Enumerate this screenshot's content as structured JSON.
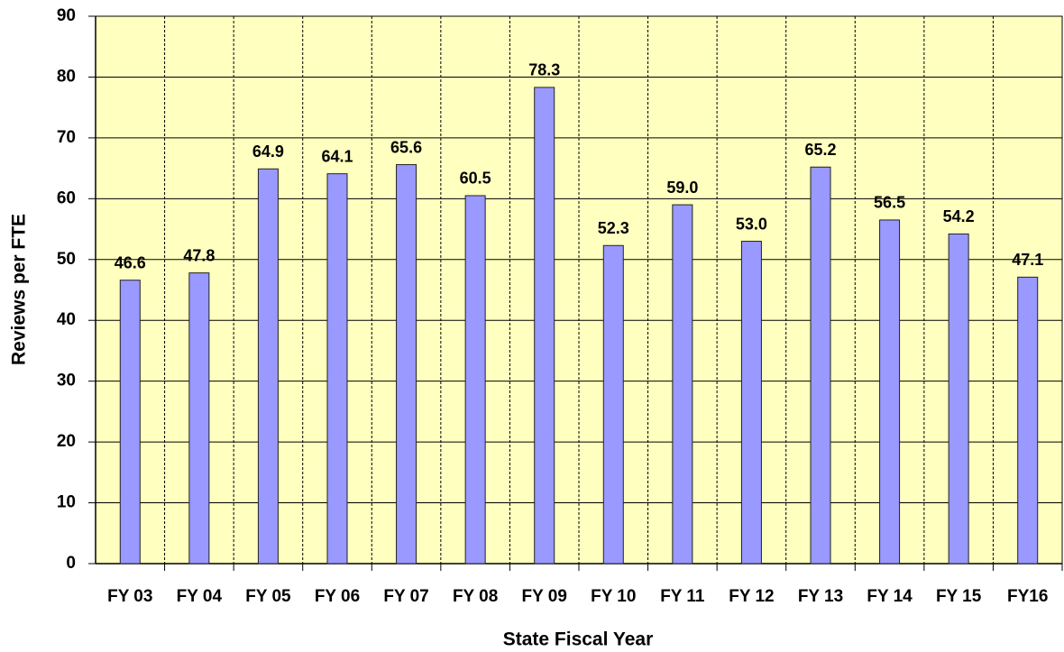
{
  "chart_data": {
    "type": "bar",
    "x_label": "State Fiscal Year",
    "y_label": "Reviews per FTE",
    "categories": [
      "FY 03",
      "FY 04",
      "FY 05",
      "FY 06",
      "FY 07",
      "FY 08",
      "FY 09",
      "FY 10",
      "FY 11",
      "FY 12",
      "FY 13",
      "FY 14",
      "FY 15",
      "FY16"
    ],
    "values": [
      46.6,
      47.8,
      64.9,
      64.1,
      65.6,
      60.5,
      78.3,
      52.3,
      59.0,
      53.0,
      65.2,
      56.5,
      54.2,
      47.1
    ],
    "value_labels": [
      "46.6",
      "47.8",
      "64.9",
      "64.1",
      "65.6",
      "60.5",
      "78.3",
      "52.3",
      "59.0",
      "53.0",
      "65.2",
      "56.5",
      "54.2",
      "47.1"
    ],
    "color": "#9999ff",
    "background": "#ffffc0",
    "ylim": [
      0,
      90
    ],
    "yticks": [
      0,
      10,
      20,
      30,
      40,
      50,
      60,
      70,
      80,
      90
    ],
    "grid": true
  }
}
